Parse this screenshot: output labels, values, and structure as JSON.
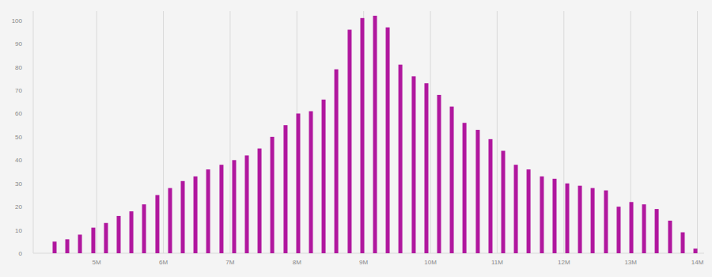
{
  "chart_data": {
    "type": "bar",
    "x": [
      4.37,
      4.56,
      4.75,
      4.95,
      5.14,
      5.33,
      5.52,
      5.71,
      5.91,
      6.1,
      6.29,
      6.48,
      6.67,
      6.87,
      7.06,
      7.25,
      7.44,
      7.63,
      7.83,
      8.02,
      8.21,
      8.4,
      8.59,
      8.79,
      8.98,
      9.17,
      9.36,
      9.55,
      9.75,
      9.94,
      10.13,
      10.32,
      10.51,
      10.71,
      10.9,
      11.09,
      11.28,
      11.47,
      11.67,
      11.86,
      12.05,
      12.24,
      12.43,
      12.63,
      12.82,
      13.01,
      13.2,
      13.39,
      13.59,
      13.78,
      13.97
    ],
    "values": [
      5,
      6,
      8,
      11,
      13,
      16,
      18,
      21,
      25,
      28,
      31,
      33,
      36,
      38,
      40,
      42,
      45,
      50,
      55,
      60,
      61,
      66,
      79,
      96,
      101,
      102,
      97,
      81,
      76,
      73,
      68,
      63,
      56,
      53,
      49,
      44,
      38,
      36,
      33,
      32,
      30,
      29,
      28,
      27,
      20,
      22,
      21,
      19,
      14,
      9,
      2
    ],
    "color": "#b0179e",
    "xlim": [
      4.05,
      14.1
    ],
    "xticks": [
      {
        "value": 5,
        "label": "5M"
      },
      {
        "value": 6,
        "label": "6M"
      },
      {
        "value": 7,
        "label": "7M"
      },
      {
        "value": 8,
        "label": "8M"
      },
      {
        "value": 9,
        "label": "9M"
      },
      {
        "value": 10,
        "label": "10M"
      },
      {
        "value": 11,
        "label": "11M"
      },
      {
        "value": 12,
        "label": "12M"
      },
      {
        "value": 13,
        "label": "13M"
      },
      {
        "value": 14,
        "label": "14M"
      }
    ],
    "ylim": [
      0,
      104
    ],
    "yticks": [
      0,
      10,
      20,
      30,
      40,
      50,
      60,
      70,
      80,
      90,
      100
    ],
    "grid": true
  }
}
